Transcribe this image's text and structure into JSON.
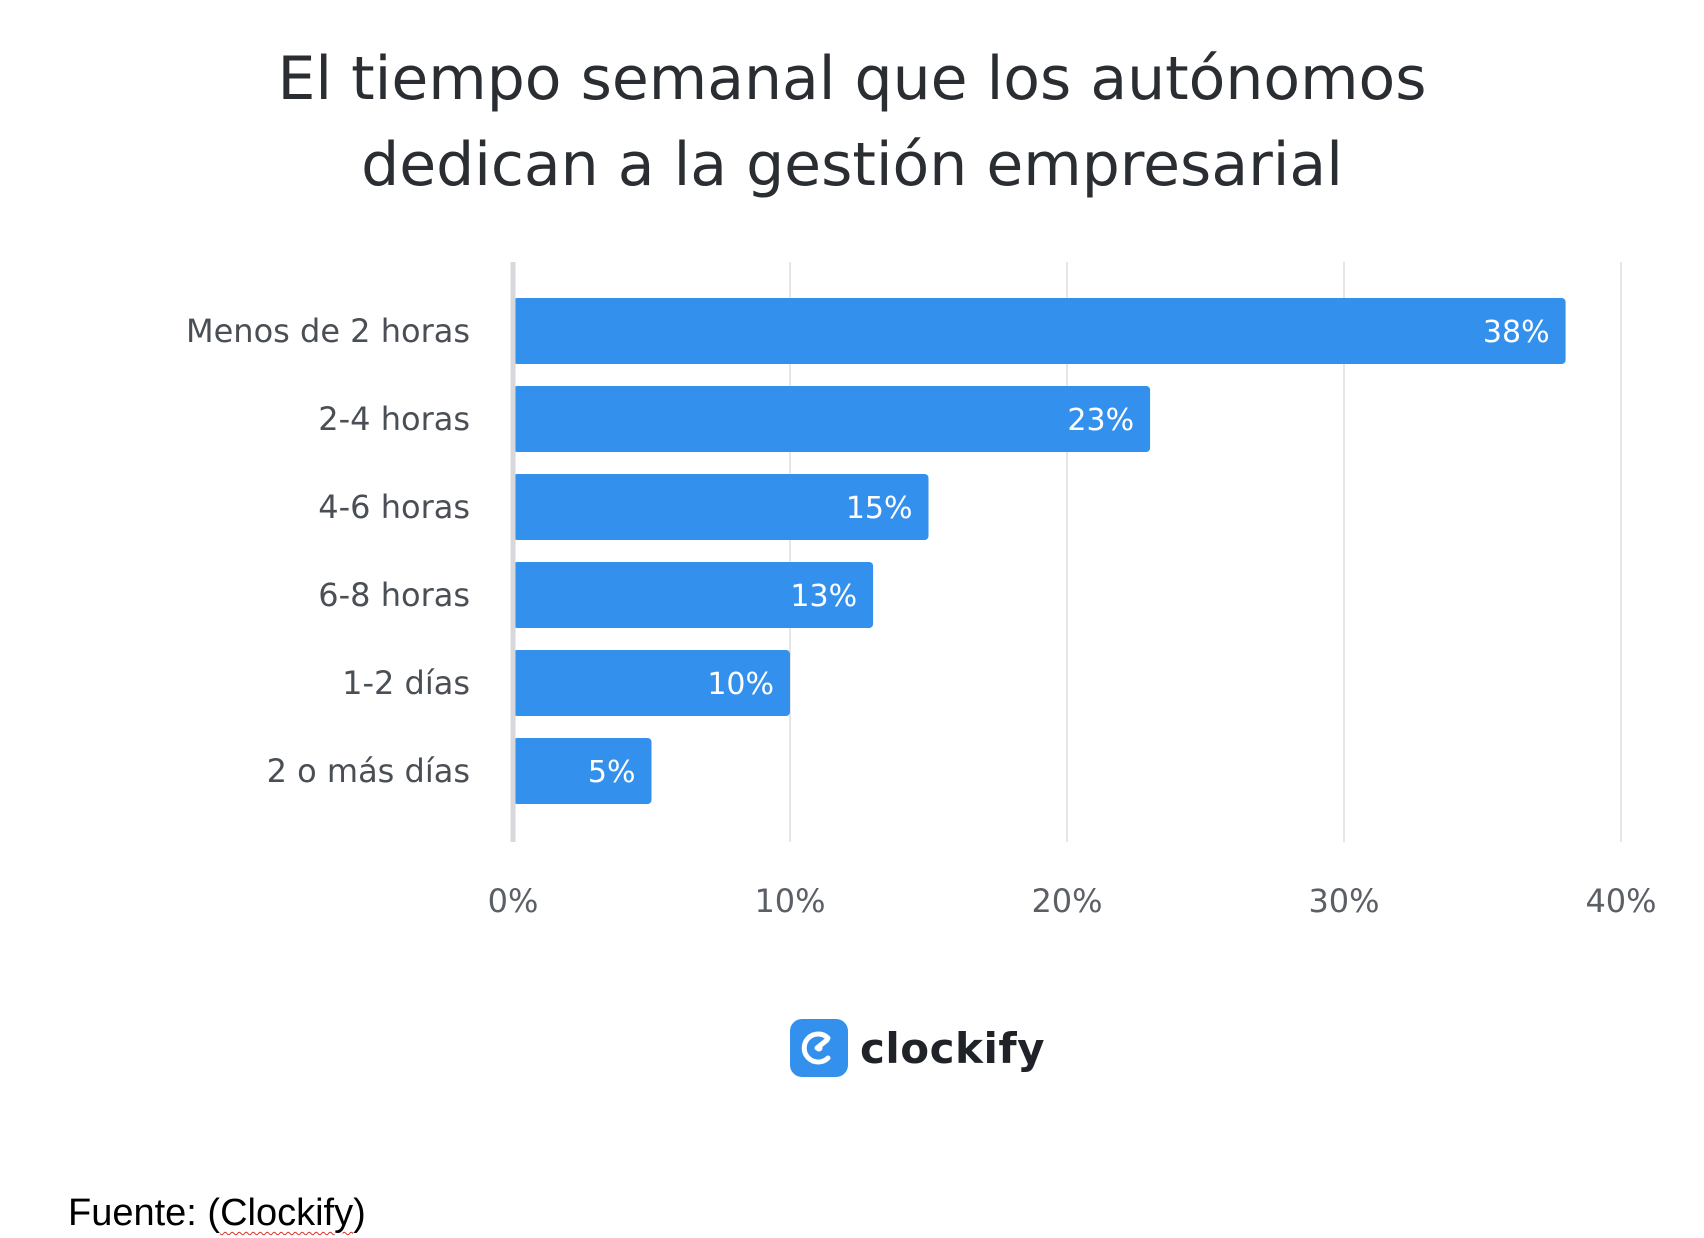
{
  "title_lines": [
    "El tiempo semanal que los autónomos",
    "dedican a la gestión empresarial"
  ],
  "chart_data": {
    "type": "bar",
    "orientation": "horizontal",
    "title": "El tiempo semanal que los autónomos dedican a la gestión empresarial",
    "categories": [
      "Menos de 2 horas",
      "2-4 horas",
      "4-6 horas",
      "6-8 horas",
      "1-2 días",
      "2 o más días"
    ],
    "values": [
      38,
      23,
      15,
      13,
      10,
      5
    ],
    "value_labels": [
      "38%",
      "23%",
      "15%",
      "13%",
      "10%",
      "5%"
    ],
    "xlim": [
      0,
      40
    ],
    "x_ticks": [
      0,
      10,
      20,
      30,
      40
    ],
    "x_tick_labels": [
      "0%",
      "10%",
      "20%",
      "30%",
      "40%"
    ],
    "xlabel": "",
    "ylabel": "",
    "grid": true,
    "bar_color": "#3490ed"
  },
  "brand": {
    "name": "clockify",
    "icon": "clockify-logo-icon",
    "color": "#3490ed"
  },
  "source": {
    "prefix": "Fuente: (",
    "name": "Clockify",
    "suffix": ")"
  }
}
